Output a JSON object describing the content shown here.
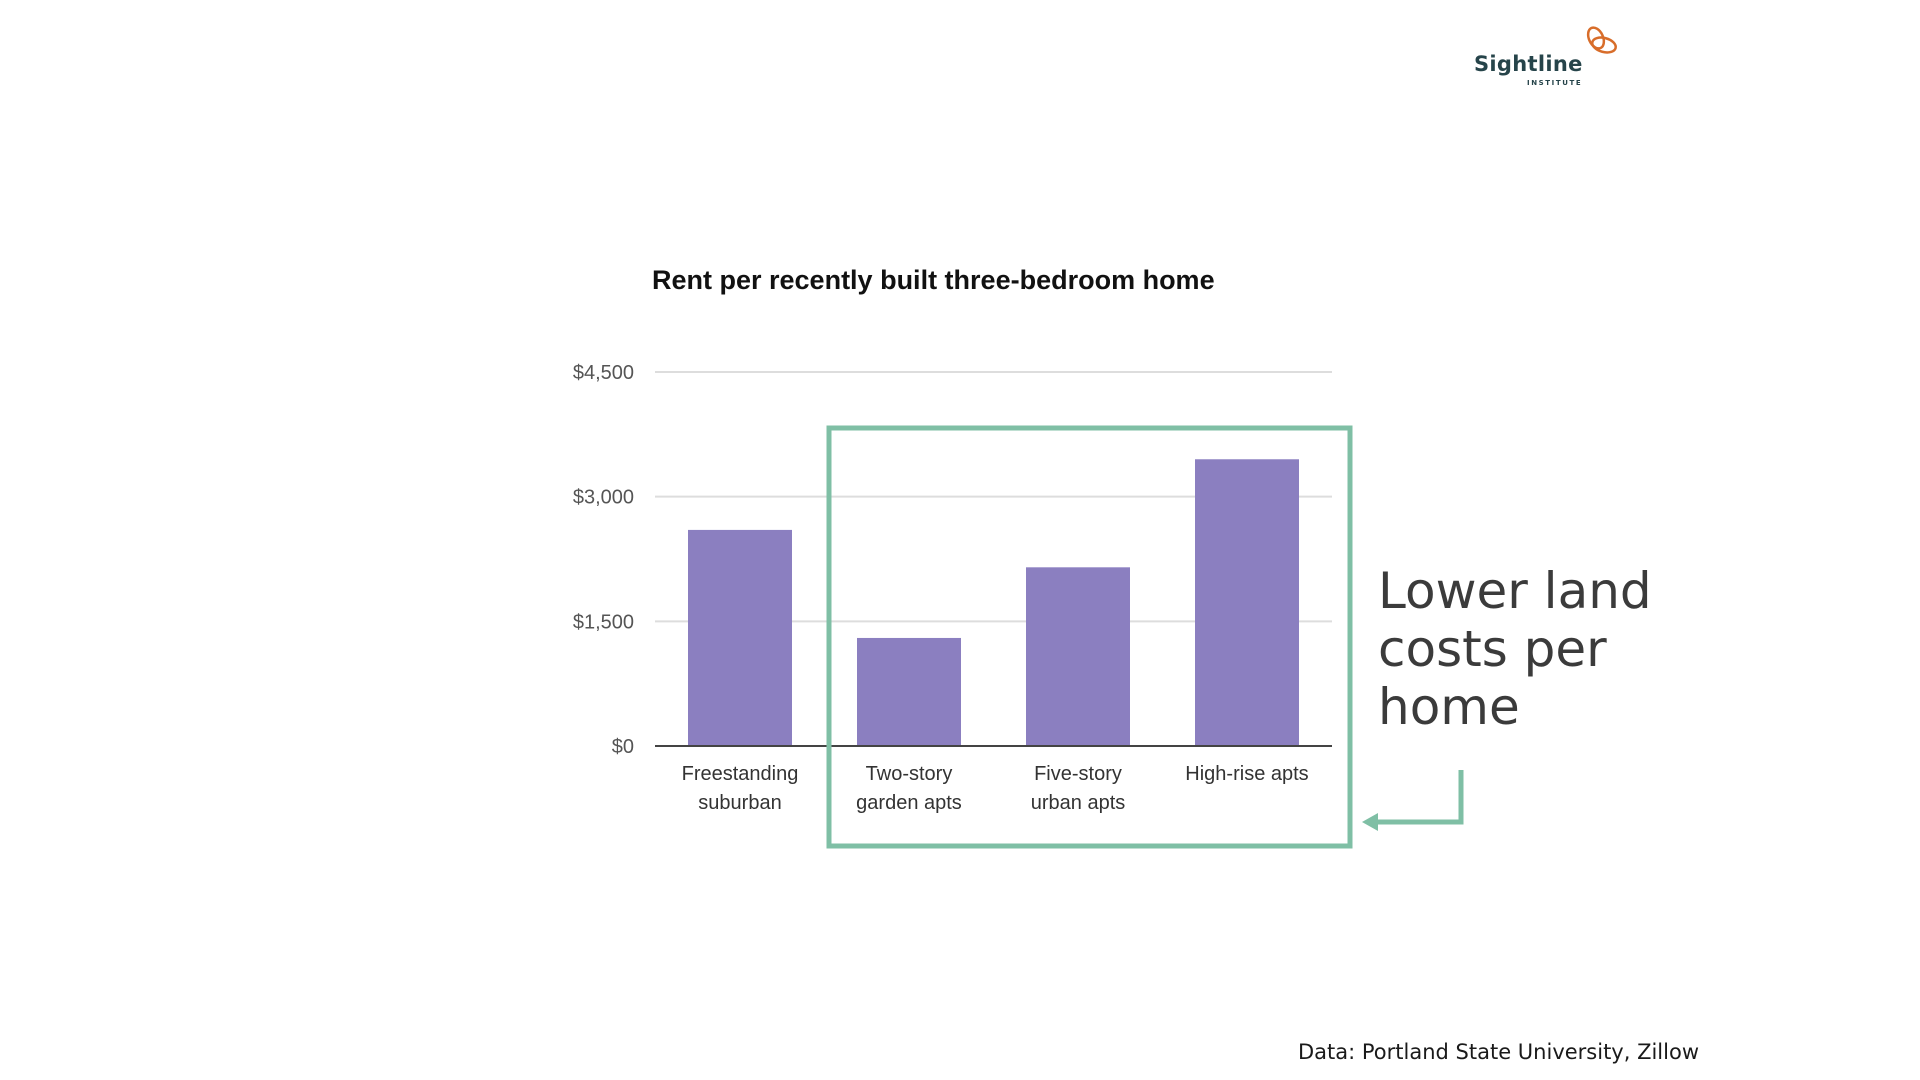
{
  "logo": {
    "name": "Sightline",
    "subtitle": "INSTITUTE",
    "icon": "sightline-logo-mark"
  },
  "annotation": {
    "text": "Lower land\ncosts per\nhome"
  },
  "source": {
    "text": "Data: Portland State University, Zillow"
  },
  "colors": {
    "bar": "#8b7fc0",
    "highlight_box": "#7fbfa5",
    "logo_orange": "#d86d2a",
    "logo_dark": "#26444a",
    "gridline": "#dddddd",
    "axis": "#444444"
  },
  "chart_data": {
    "type": "bar",
    "title": "Rent per recently built three-bedroom home",
    "xlabel": "",
    "ylabel": "",
    "categories": [
      [
        "Freestanding",
        "suburban"
      ],
      [
        "Two-story",
        "garden apts"
      ],
      [
        "Five-story",
        "urban apts"
      ],
      [
        "High-rise apts"
      ]
    ],
    "values": [
      2600,
      1300,
      2150,
      3450
    ],
    "ylim": [
      0,
      4500
    ],
    "yticks": [
      {
        "value": 0,
        "label": "$0"
      },
      {
        "value": 1500,
        "label": "$1,500"
      },
      {
        "value": 3000,
        "label": "$3,000"
      },
      {
        "value": 4500,
        "label": "$4,500"
      }
    ],
    "grid": true,
    "highlight": {
      "categories": [
        1,
        2,
        3
      ]
    }
  }
}
